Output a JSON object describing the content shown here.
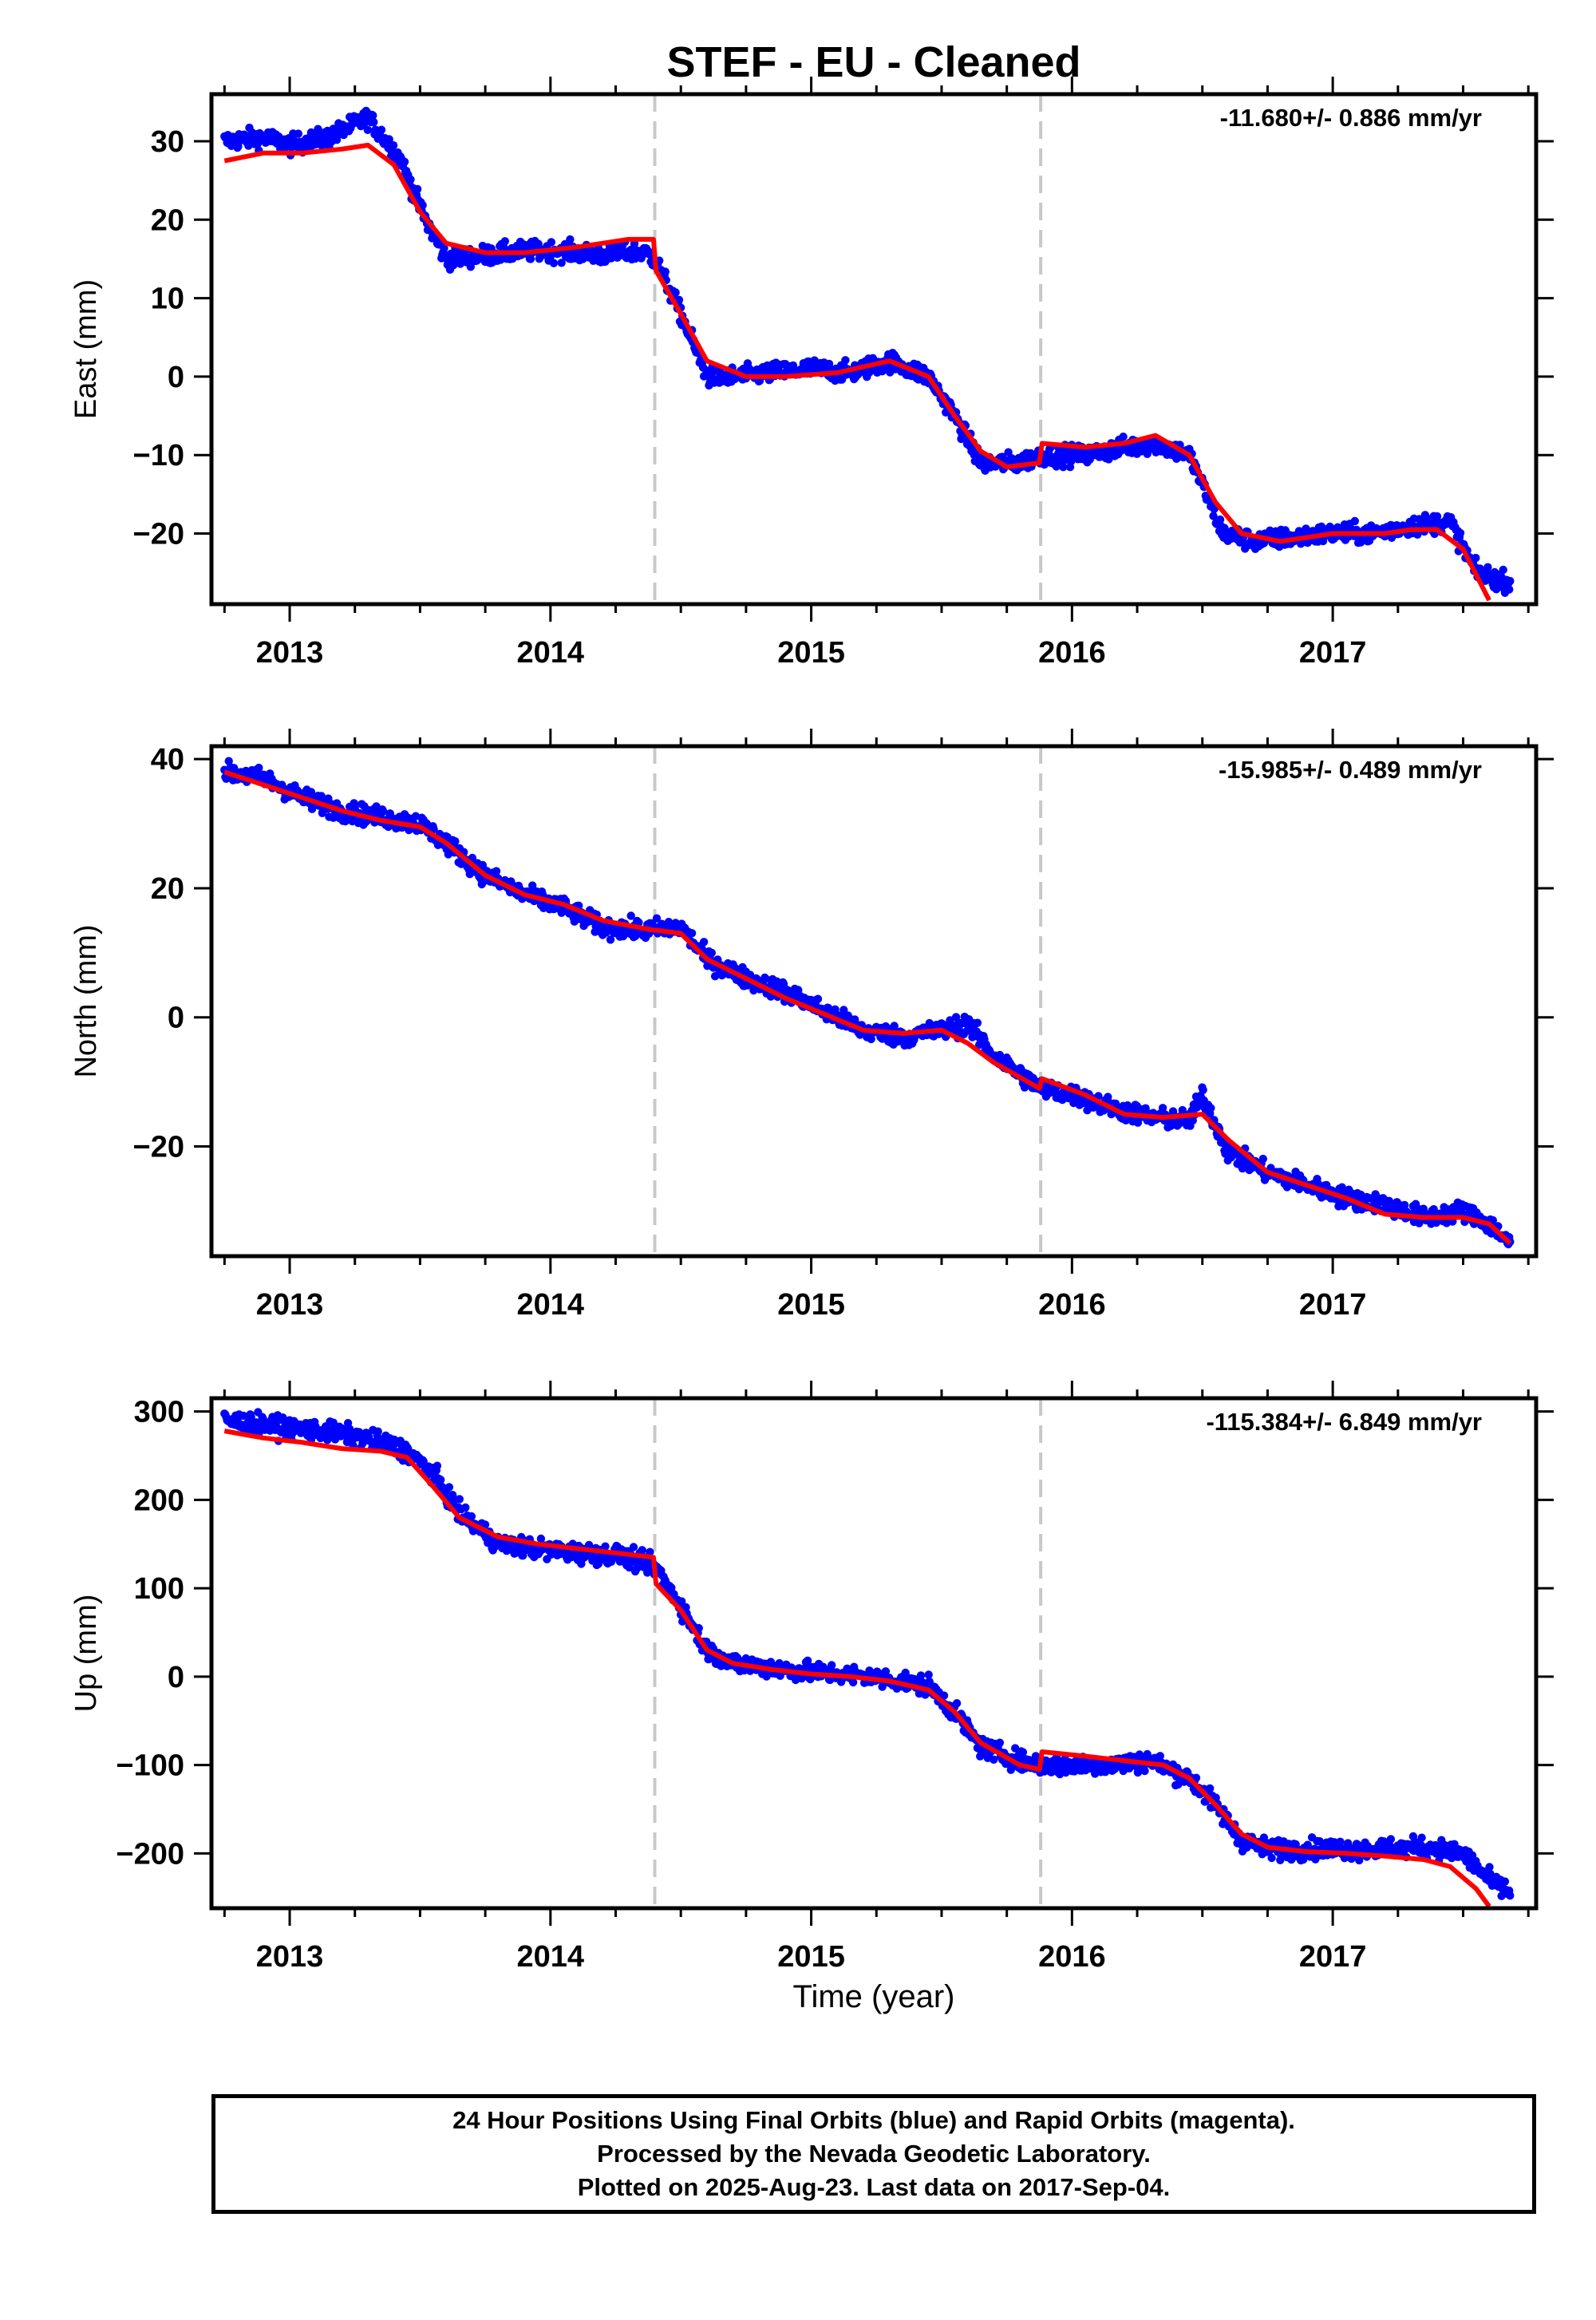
{
  "title": "STEF  - EU - Cleaned",
  "xlabel": "Time (year)",
  "footer": {
    "line1": "24 Hour Positions Using Final Orbits (blue) and Rapid Orbits (magenta).",
    "line2": "Processed by the Nevada Geodetic Laboratory.",
    "line3": "Plotted on 2025-Aug-23. Last data on 2017-Sep-04."
  },
  "colors": {
    "final_orbits": "#0000ff",
    "model": "#ff0000",
    "breaks": "#c8c8c8",
    "axes": "#000000"
  },
  "chart_data": [
    {
      "type": "scatter",
      "ylabel": "East (mm)",
      "rate_label": "-11.680+/- 0.886 mm/yr",
      "xlim": [
        2012.7,
        2017.78
      ],
      "ylim": [
        -29,
        36
      ],
      "xticks": [
        2013,
        2014,
        2015,
        2016,
        2017
      ],
      "yticks": [
        -20,
        -10,
        0,
        10,
        20,
        30
      ],
      "breaks": [
        2014.4,
        2015.88
      ],
      "grid": false,
      "series": [
        {
          "kind": "points",
          "x": [
            2012.75,
            2012.9,
            2013.0,
            2013.15,
            2013.3,
            2013.42,
            2013.52,
            2013.6,
            2013.75,
            2013.9,
            2014.05,
            2014.2,
            2014.35,
            2014.4,
            2014.5,
            2014.6,
            2014.7,
            2014.85,
            2015.0,
            2015.15,
            2015.3,
            2015.45,
            2015.55,
            2015.65,
            2015.8,
            2015.88,
            2016.05,
            2016.2,
            2016.32,
            2016.45,
            2016.58,
            2016.7,
            2016.85,
            2017.0,
            2017.15,
            2017.3,
            2017.45,
            2017.55,
            2017.65,
            2017.68
          ],
          "y": [
            30,
            30.5,
            29.5,
            30.5,
            33,
            28,
            20,
            15,
            15.5,
            16,
            16,
            15.5,
            16,
            15,
            8,
            0,
            0,
            0.5,
            1,
            0.5,
            2,
            0,
            -5,
            -11,
            -11,
            -10,
            -10,
            -9,
            -8.5,
            -10,
            -20,
            -21,
            -20.5,
            -20,
            -20,
            -19,
            -18.5,
            -25,
            -26,
            -26
          ]
        },
        {
          "kind": "model",
          "x": [
            2012.75,
            2012.9,
            2013.05,
            2013.2,
            2013.3,
            2013.4,
            2013.5,
            2013.6,
            2013.75,
            2013.9,
            2014.1,
            2014.3,
            2014.395,
            2014.405,
            2014.5,
            2014.6,
            2014.75,
            2014.9,
            2015.1,
            2015.3,
            2015.45,
            2015.55,
            2015.65,
            2015.75,
            2015.875,
            2015.885,
            2016.05,
            2016.2,
            2016.32,
            2016.45,
            2016.55,
            2016.65,
            2016.8,
            2017.0,
            2017.2,
            2017.3,
            2017.4,
            2017.5,
            2017.6
          ],
          "y": [
            27.5,
            28.5,
            28.5,
            29,
            29.5,
            27,
            21,
            17,
            15.8,
            15.8,
            16.5,
            17.5,
            17.5,
            13.5,
            8,
            2,
            0,
            0,
            0.5,
            2,
            0,
            -5,
            -9.5,
            -11.5,
            -11,
            -8.5,
            -9,
            -8.5,
            -7.5,
            -10,
            -16,
            -20,
            -21,
            -20,
            -20,
            -19.5,
            -19.5,
            -22,
            -28.5
          ]
        }
      ]
    },
    {
      "type": "scatter",
      "ylabel": "North (mm)",
      "rate_label": "-15.985+/- 0.489 mm/yr",
      "xlim": [
        2012.7,
        2017.78
      ],
      "ylim": [
        -37,
        42
      ],
      "xticks": [
        2013,
        2014,
        2015,
        2016,
        2017
      ],
      "yticks": [
        -20,
        0,
        20,
        40
      ],
      "breaks": [
        2014.4,
        2015.88
      ],
      "grid": false,
      "series": [
        {
          "kind": "points",
          "x": [
            2012.75,
            2012.9,
            2013.05,
            2013.2,
            2013.35,
            2013.5,
            2013.6,
            2013.75,
            2013.9,
            2014.05,
            2014.2,
            2014.35,
            2014.5,
            2014.6,
            2014.75,
            2014.9,
            2015.05,
            2015.2,
            2015.35,
            2015.5,
            2015.6,
            2015.7,
            2015.88,
            2016.0,
            2016.15,
            2016.3,
            2016.45,
            2016.5,
            2016.6,
            2016.75,
            2016.9,
            2017.05,
            2017.2,
            2017.35,
            2017.5,
            2017.6,
            2017.68
          ],
          "y": [
            38,
            37,
            34,
            32,
            31,
            30,
            27,
            22,
            19,
            17,
            14,
            13.5,
            14,
            9,
            6,
            4,
            1,
            -2,
            -3,
            -2,
            -1,
            -6,
            -11,
            -12,
            -14,
            -15.5,
            -16,
            -12,
            -21,
            -24,
            -26,
            -28,
            -29,
            -31,
            -30,
            -32,
            -35
          ]
        },
        {
          "kind": "model",
          "x": [
            2012.75,
            2012.9,
            2013.05,
            2013.2,
            2013.35,
            2013.5,
            2013.6,
            2013.75,
            2013.9,
            2014.05,
            2014.2,
            2014.395,
            2014.405,
            2014.5,
            2014.6,
            2014.75,
            2014.9,
            2015.05,
            2015.2,
            2015.35,
            2015.5,
            2015.6,
            2015.7,
            2015.875,
            2015.885,
            2016.05,
            2016.2,
            2016.35,
            2016.5,
            2016.6,
            2016.75,
            2016.9,
            2017.05,
            2017.2,
            2017.35,
            2017.5,
            2017.6,
            2017.68
          ],
          "y": [
            38,
            36,
            34,
            32,
            30.5,
            29.5,
            27,
            22,
            19,
            17.5,
            15,
            13.5,
            13.5,
            13,
            9,
            6,
            3,
            0.5,
            -2,
            -2.5,
            -2,
            -4,
            -7,
            -11,
            -9.5,
            -12,
            -15,
            -15.5,
            -15,
            -19,
            -24,
            -26,
            -28,
            -30.5,
            -31,
            -31,
            -32,
            -35
          ]
        }
      ]
    },
    {
      "type": "scatter",
      "ylabel": "Up (mm)",
      "xlabel": "Time (year)",
      "rate_label": "-115.384+/- 6.849 mm/yr",
      "xlim": [
        2012.7,
        2017.78
      ],
      "ylim": [
        -262,
        315
      ],
      "xticks": [
        2013,
        2014,
        2015,
        2016,
        2017
      ],
      "yticks": [
        -200,
        -100,
        0,
        100,
        200,
        300
      ],
      "breaks": [
        2014.4,
        2015.88
      ],
      "grid": false,
      "series": [
        {
          "kind": "points",
          "x": [
            2012.75,
            2012.9,
            2013.05,
            2013.2,
            2013.35,
            2013.45,
            2013.55,
            2013.65,
            2013.8,
            2013.95,
            2014.1,
            2014.25,
            2014.4,
            2014.5,
            2014.6,
            2014.7,
            2014.85,
            2015.0,
            2015.15,
            2015.3,
            2015.45,
            2015.55,
            2015.65,
            2015.8,
            2015.88,
            2016.0,
            2016.15,
            2016.3,
            2016.45,
            2016.55,
            2016.65,
            2016.75,
            2016.9,
            2017.05,
            2017.2,
            2017.35,
            2017.5,
            2017.6,
            2017.68
          ],
          "y": [
            290,
            285,
            280,
            275,
            265,
            255,
            230,
            185,
            150,
            145,
            140,
            138,
            125,
            80,
            30,
            15,
            10,
            5,
            2,
            -3,
            -10,
            -40,
            -80,
            -95,
            -100,
            -100,
            -100,
            -95,
            -115,
            -145,
            -185,
            -195,
            -195,
            -195,
            -195,
            -193,
            -200,
            -230,
            -245
          ]
        },
        {
          "kind": "model",
          "x": [
            2012.75,
            2012.9,
            2013.05,
            2013.2,
            2013.35,
            2013.45,
            2013.55,
            2013.65,
            2013.8,
            2013.95,
            2014.1,
            2014.25,
            2014.395,
            2014.405,
            2014.5,
            2014.6,
            2014.7,
            2014.85,
            2015.0,
            2015.15,
            2015.3,
            2015.45,
            2015.55,
            2015.65,
            2015.8,
            2015.875,
            2015.885,
            2016.05,
            2016.2,
            2016.35,
            2016.45,
            2016.55,
            2016.65,
            2016.75,
            2016.9,
            2017.05,
            2017.2,
            2017.35,
            2017.45,
            2017.55,
            2017.6
          ],
          "y": [
            278,
            270,
            265,
            258,
            255,
            248,
            215,
            180,
            158,
            150,
            145,
            140,
            135,
            105,
            75,
            30,
            15,
            8,
            3,
            0,
            -5,
            -15,
            -40,
            -75,
            -100,
            -105,
            -85,
            -90,
            -95,
            -100,
            -115,
            -145,
            -178,
            -193,
            -198,
            -200,
            -203,
            -207,
            -215,
            -240,
            -260
          ]
        }
      ]
    }
  ]
}
